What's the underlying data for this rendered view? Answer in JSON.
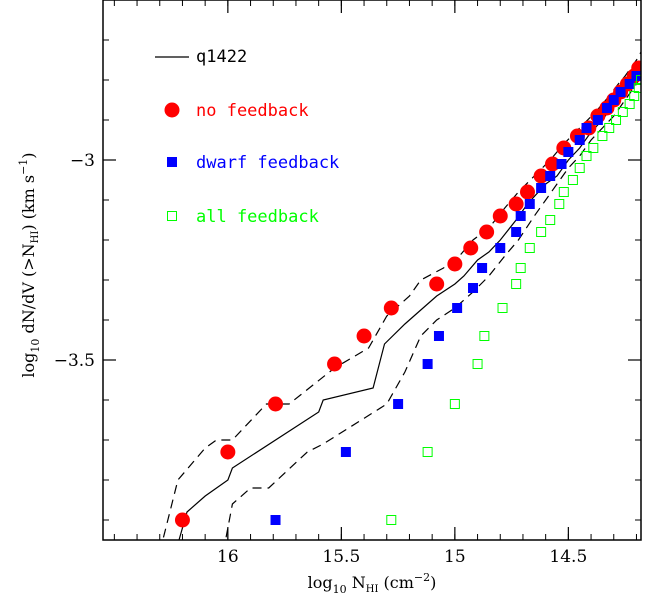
{
  "chart_data": {
    "type": "scatter",
    "x_axis": {
      "label_main": "log",
      "label_sub": "10",
      "label_rest": " N",
      "label_nsub": "HI",
      "label_unit": " (cm",
      "label_exp": "−2",
      "label_close": ")",
      "reversed": true,
      "range": [
        16.55,
        14.18
      ],
      "major_ticks": [
        16,
        15.5,
        15,
        14.5
      ],
      "major_tick_labels": [
        "16",
        "15.5",
        "15",
        "14.5"
      ],
      "minor_step": 0.1
    },
    "y_axis": {
      "label_main": "log",
      "label_sub": "10",
      "label_rest": " dN/dV (>N",
      "label_nsub": "HI",
      "label_unit": ") (km s",
      "label_exp": "−1",
      "label_close": ")",
      "range": [
        -3.95,
        -2.6
      ],
      "major_ticks": [
        -3,
        -3.5
      ],
      "major_tick_labels": [
        "−3",
        "−3.5"
      ],
      "minor_step": 0.1
    },
    "legend": {
      "placement": "top-left",
      "entries": [
        {
          "label": "q1422",
          "marker": "line",
          "color": "#000000"
        },
        {
          "label": "no feedback",
          "marker": "filled-circle",
          "color": "#ff0000"
        },
        {
          "label": "dwarf feedback",
          "marker": "filled-square",
          "color": "#0000ff"
        },
        {
          "label": "all feedback",
          "marker": "open-square",
          "color": "#00ff00"
        }
      ]
    },
    "series": [
      {
        "name": "no feedback",
        "marker": "filled-circle",
        "color": "#ff0000",
        "points": [
          [
            16.2,
            -3.9
          ],
          [
            16.0,
            -3.73
          ],
          [
            15.79,
            -3.61
          ],
          [
            15.53,
            -3.51
          ],
          [
            15.4,
            -3.44
          ],
          [
            15.28,
            -3.37
          ],
          [
            15.08,
            -3.31
          ],
          [
            15.0,
            -3.26
          ],
          [
            14.93,
            -3.22
          ],
          [
            14.86,
            -3.18
          ],
          [
            14.8,
            -3.14
          ],
          [
            14.73,
            -3.11
          ],
          [
            14.68,
            -3.08
          ],
          [
            14.62,
            -3.04
          ],
          [
            14.57,
            -3.01
          ],
          [
            14.52,
            -2.97
          ],
          [
            14.46,
            -2.94
          ],
          [
            14.41,
            -2.92
          ],
          [
            14.37,
            -2.89
          ],
          [
            14.33,
            -2.87
          ],
          [
            14.3,
            -2.85
          ],
          [
            14.27,
            -2.83
          ],
          [
            14.24,
            -2.81
          ],
          [
            14.21,
            -2.79
          ],
          [
            14.19,
            -2.77
          ]
        ]
      },
      {
        "name": "dwarf feedback",
        "marker": "filled-square",
        "color": "#0000ff",
        "points": [
          [
            15.79,
            -3.9
          ],
          [
            15.48,
            -3.73
          ],
          [
            15.25,
            -3.61
          ],
          [
            15.12,
            -3.51
          ],
          [
            15.07,
            -3.44
          ],
          [
            14.99,
            -3.37
          ],
          [
            14.92,
            -3.32
          ],
          [
            14.88,
            -3.27
          ],
          [
            14.8,
            -3.22
          ],
          [
            14.73,
            -3.18
          ],
          [
            14.71,
            -3.14
          ],
          [
            14.67,
            -3.11
          ],
          [
            14.62,
            -3.07
          ],
          [
            14.58,
            -3.04
          ],
          [
            14.53,
            -3.01
          ],
          [
            14.5,
            -2.98
          ],
          [
            14.45,
            -2.95
          ],
          [
            14.42,
            -2.92
          ],
          [
            14.37,
            -2.9
          ],
          [
            14.33,
            -2.87
          ],
          [
            14.3,
            -2.85
          ],
          [
            14.27,
            -2.83
          ],
          [
            14.23,
            -2.81
          ],
          [
            14.2,
            -2.79
          ]
        ]
      },
      {
        "name": "all feedback",
        "marker": "open-square",
        "color": "#00ff00",
        "points": [
          [
            15.28,
            -3.9
          ],
          [
            15.12,
            -3.73
          ],
          [
            15.0,
            -3.61
          ],
          [
            14.9,
            -3.51
          ],
          [
            14.87,
            -3.44
          ],
          [
            14.79,
            -3.37
          ],
          [
            14.73,
            -3.31
          ],
          [
            14.71,
            -3.27
          ],
          [
            14.67,
            -3.22
          ],
          [
            14.62,
            -3.18
          ],
          [
            14.58,
            -3.15
          ],
          [
            14.54,
            -3.11
          ],
          [
            14.52,
            -3.08
          ],
          [
            14.48,
            -3.05
          ],
          [
            14.45,
            -3.02
          ],
          [
            14.42,
            -2.99
          ],
          [
            14.39,
            -2.97
          ],
          [
            14.35,
            -2.94
          ],
          [
            14.32,
            -2.92
          ],
          [
            14.29,
            -2.9
          ],
          [
            14.26,
            -2.88
          ],
          [
            14.23,
            -2.86
          ],
          [
            14.21,
            -2.84
          ],
          [
            14.19,
            -2.82
          ],
          [
            14.18,
            -2.8
          ]
        ]
      },
      {
        "name": "q1422",
        "marker": "solid-line",
        "color": "#000000",
        "points": [
          [
            16.23,
            -3.98
          ],
          [
            16.18,
            -3.88
          ],
          [
            16.1,
            -3.84
          ],
          [
            16.0,
            -3.8
          ],
          [
            15.98,
            -3.77
          ],
          [
            15.6,
            -3.63
          ],
          [
            15.58,
            -3.6
          ],
          [
            15.36,
            -3.57
          ],
          [
            15.31,
            -3.46
          ],
          [
            15.22,
            -3.41
          ],
          [
            15.16,
            -3.38
          ],
          [
            15.08,
            -3.34
          ],
          [
            15.0,
            -3.31
          ],
          [
            14.96,
            -3.29
          ],
          [
            14.9,
            -3.25
          ],
          [
            14.85,
            -3.23
          ],
          [
            14.8,
            -3.2
          ],
          [
            14.73,
            -3.15
          ],
          [
            14.68,
            -3.11
          ],
          [
            14.6,
            -3.06
          ],
          [
            14.55,
            -3.04
          ],
          [
            14.5,
            -3.0
          ],
          [
            14.45,
            -2.97
          ],
          [
            14.4,
            -2.93
          ],
          [
            14.35,
            -2.9
          ],
          [
            14.3,
            -2.86
          ],
          [
            14.25,
            -2.82
          ],
          [
            14.2,
            -2.78
          ],
          [
            14.18,
            -2.76
          ]
        ]
      },
      {
        "name": "q1422 upper",
        "marker": "dashed-line",
        "color": "#000000",
        "points": [
          [
            16.3,
            -3.98
          ],
          [
            16.22,
            -3.8
          ],
          [
            16.1,
            -3.72
          ],
          [
            16.05,
            -3.7
          ],
          [
            15.98,
            -3.7
          ],
          [
            15.83,
            -3.61
          ],
          [
            15.73,
            -3.61
          ],
          [
            15.53,
            -3.52
          ],
          [
            15.38,
            -3.47
          ],
          [
            15.3,
            -3.39
          ],
          [
            15.2,
            -3.34
          ],
          [
            15.15,
            -3.3
          ],
          [
            15.05,
            -3.27
          ],
          [
            14.98,
            -3.24
          ],
          [
            14.92,
            -3.2
          ],
          [
            14.85,
            -3.17
          ],
          [
            14.78,
            -3.12
          ],
          [
            14.72,
            -3.08
          ],
          [
            14.65,
            -3.04
          ],
          [
            14.58,
            -3.0
          ],
          [
            14.52,
            -2.96
          ],
          [
            14.45,
            -2.92
          ],
          [
            14.38,
            -2.88
          ],
          [
            14.32,
            -2.84
          ],
          [
            14.28,
            -2.81
          ],
          [
            14.25,
            -2.79
          ],
          [
            14.2,
            -2.75
          ],
          [
            14.18,
            -2.73
          ]
        ]
      },
      {
        "name": "q1422 lower",
        "marker": "dashed-line",
        "color": "#000000",
        "points": [
          [
            16.02,
            -3.98
          ],
          [
            15.98,
            -3.86
          ],
          [
            15.9,
            -3.82
          ],
          [
            15.82,
            -3.82
          ],
          [
            15.65,
            -3.73
          ],
          [
            15.58,
            -3.71
          ],
          [
            15.3,
            -3.61
          ],
          [
            15.22,
            -3.53
          ],
          [
            15.15,
            -3.44
          ],
          [
            15.08,
            -3.4
          ],
          [
            15.0,
            -3.37
          ],
          [
            14.92,
            -3.33
          ],
          [
            14.85,
            -3.29
          ],
          [
            14.78,
            -3.24
          ],
          [
            14.72,
            -3.2
          ],
          [
            14.65,
            -3.14
          ],
          [
            14.6,
            -3.1
          ],
          [
            14.55,
            -3.06
          ],
          [
            14.5,
            -3.02
          ],
          [
            14.45,
            -2.99
          ],
          [
            14.4,
            -2.95
          ],
          [
            14.35,
            -2.92
          ],
          [
            14.3,
            -2.89
          ],
          [
            14.25,
            -2.85
          ],
          [
            14.2,
            -2.81
          ],
          [
            14.18,
            -2.79
          ]
        ]
      }
    ]
  }
}
